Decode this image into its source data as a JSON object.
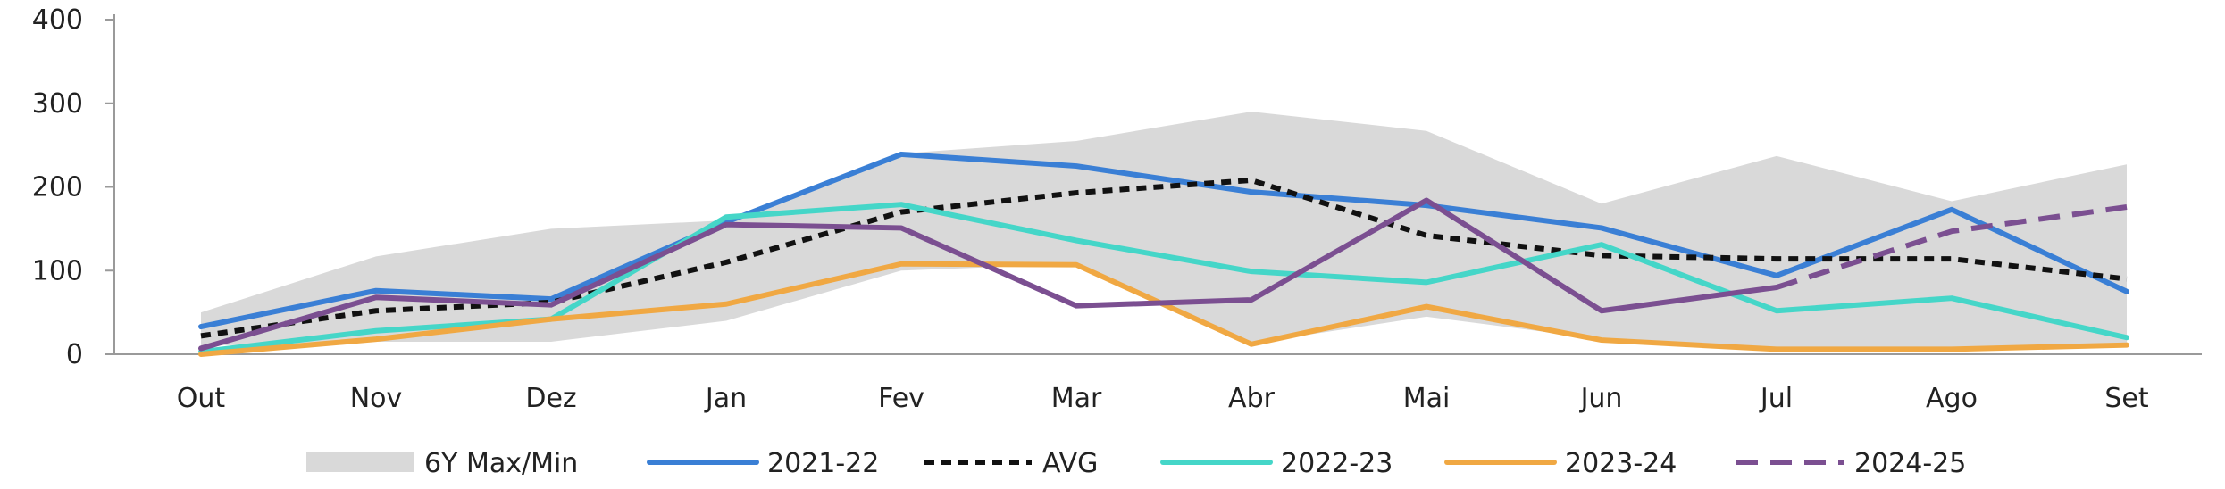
{
  "chart_data": {
    "type": "line",
    "categories": [
      "Out",
      "Nov",
      "Dez",
      "Jan",
      "Fev",
      "Mar",
      "Abr",
      "Mai",
      "Jun",
      "Jul",
      "Ago",
      "Set"
    ],
    "ylim": [
      0,
      400
    ],
    "yticks": [
      "0",
      "100",
      "200",
      "300",
      "400"
    ],
    "grid": false,
    "legend_position": "bottom",
    "band": {
      "name": "6Y Max/Min",
      "color": "#d9d9d9",
      "max": [
        50,
        117,
        150,
        160,
        240,
        255,
        290,
        267,
        180,
        237,
        183,
        227
      ],
      "min": [
        10,
        15,
        15,
        40,
        100,
        108,
        13,
        45,
        18,
        5,
        5,
        10
      ]
    },
    "series": [
      {
        "name": "2021-22",
        "color": "#3a7fd5",
        "dash": "solid",
        "values": [
          33,
          76,
          66,
          158,
          239,
          225,
          194,
          178,
          151,
          94,
          173,
          75
        ]
      },
      {
        "name": "AVG",
        "color": "#111111",
        "dash": "dotted",
        "values": [
          22,
          52,
          62,
          110,
          170,
          193,
          208,
          142,
          118,
          114,
          114,
          90
        ]
      },
      {
        "name": "2022-23",
        "color": "#45d6c8",
        "dash": "solid",
        "values": [
          3,
          28,
          42,
          164,
          179,
          136,
          99,
          86,
          131,
          52,
          67,
          20
        ]
      },
      {
        "name": "2023-24",
        "color": "#f0a843",
        "dash": "solid",
        "values": [
          0,
          18,
          42,
          60,
          108,
          107,
          12,
          57,
          17,
          6,
          6,
          11
        ]
      },
      {
        "name": "2024-25",
        "color": "#7b4f91",
        "dash": "solid-then-dashed",
        "dash_from_index": 9,
        "values": [
          7,
          68,
          59,
          155,
          151,
          58,
          65,
          184,
          52,
          80,
          147,
          176
        ]
      }
    ]
  }
}
